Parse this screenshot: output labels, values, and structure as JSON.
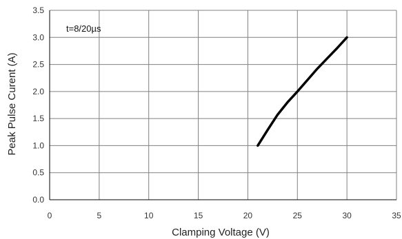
{
  "chart_data": {
    "type": "line",
    "xlabel": "Clamping Voltage (V)",
    "ylabel": "Peak  Pulse Curent (A)",
    "annotation": "t=8/20µs",
    "xlim": [
      0,
      35
    ],
    "ylim": [
      0,
      3.5
    ],
    "x_ticks": [
      0,
      5,
      10,
      15,
      20,
      25,
      30,
      35
    ],
    "y_ticks": [
      0.0,
      0.5,
      1.0,
      1.5,
      2.0,
      2.5,
      3.0,
      3.5
    ],
    "y_tick_labels": [
      "0.0",
      "0.5",
      "1.0",
      "1.5",
      "2.0",
      "2.5",
      "3.0",
      "3.5"
    ],
    "grid": true,
    "colors": {
      "line": "#000000",
      "grid": "#808080",
      "axis": "#000000"
    },
    "series": [
      {
        "x": [
          21.0,
          22.0,
          23.0,
          24.0,
          25.0,
          26.0,
          27.0,
          28.0,
          29.0,
          30.0
        ],
        "y": [
          1.0,
          1.29,
          1.57,
          1.8,
          2.0,
          2.21,
          2.42,
          2.61,
          2.8,
          3.0
        ]
      }
    ]
  }
}
